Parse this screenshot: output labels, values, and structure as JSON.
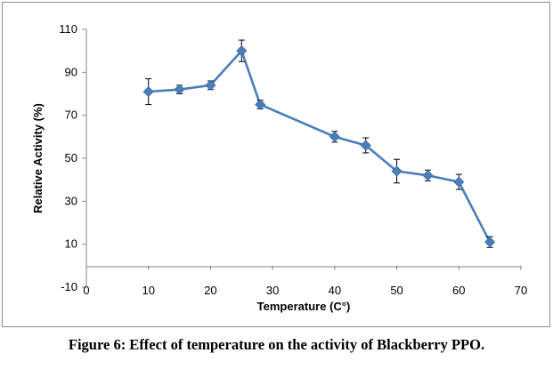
{
  "caption": "Figure 6: Effect of temperature on the activity of Blackberry PPO.",
  "chart_data": {
    "type": "line",
    "title": "",
    "xlabel": "Temperature  (C°)",
    "ylabel": "Relative Activity (%)",
    "xlim": [
      0,
      70
    ],
    "ylim": [
      -10,
      110
    ],
    "xticks": [
      0,
      10,
      20,
      30,
      40,
      50,
      60,
      70
    ],
    "yticks": [
      -10,
      10,
      30,
      50,
      70,
      90,
      110
    ],
    "grid": false,
    "legend": "none",
    "marker": "diamond",
    "color": "#4a7ebb",
    "series": [
      {
        "x": [
          10,
          15,
          20,
          25,
          28,
          40,
          45,
          50,
          55,
          60,
          65
        ],
        "y": [
          81,
          82,
          84,
          100,
          75,
          60,
          56,
          44,
          42,
          39,
          11
        ],
        "error": [
          6,
          2,
          2,
          5,
          2,
          2.5,
          3.5,
          5.5,
          2.5,
          3.5,
          2.5
        ]
      }
    ]
  }
}
